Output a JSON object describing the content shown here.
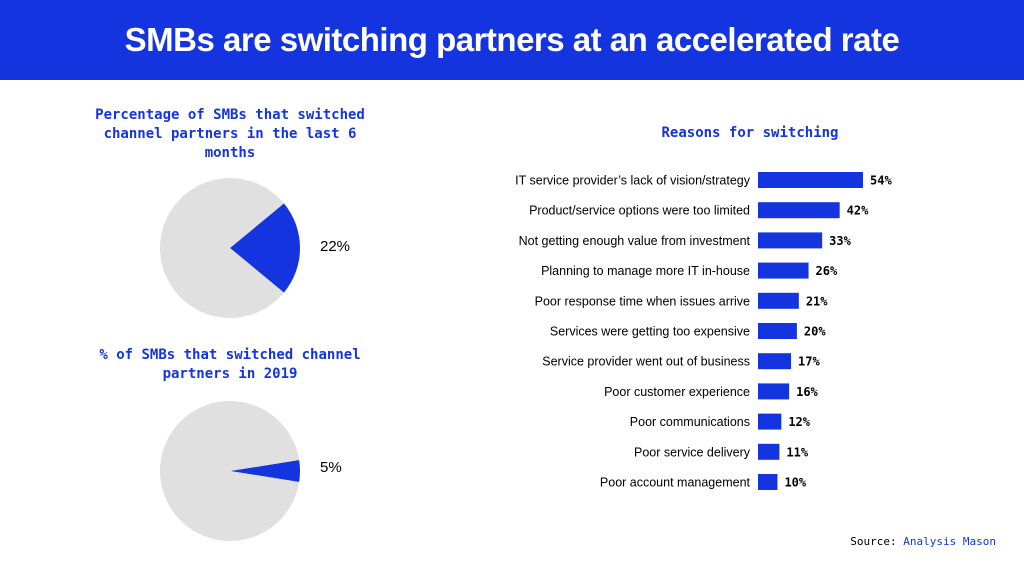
{
  "header": {
    "title": "SMBs are switching partners at an accelerated rate"
  },
  "colors": {
    "accent": "#1434e0",
    "pie_rest": "#e0e0e0",
    "text": "#000000",
    "background": "#ffffff"
  },
  "source": {
    "label": "Source:",
    "name": "Analysis Mason"
  },
  "chart_data": [
    {
      "type": "pie",
      "title": "Percentage of SMBs that switched channel partners in the last 6 months",
      "slices": [
        {
          "label": "22%",
          "value": 22
        },
        {
          "label": "",
          "value": 78
        }
      ]
    },
    {
      "type": "pie",
      "title": "% of SMBs that switched channel partners in 2019",
      "slices": [
        {
          "label": "5%",
          "value": 5
        },
        {
          "label": "",
          "value": 95
        }
      ]
    },
    {
      "type": "bar",
      "orientation": "horizontal",
      "title": "Reasons for switching",
      "categories": [
        "IT service provider’s lack of vision/strategy",
        "Product/service options were too limited",
        "Not getting enough value from investment",
        "Planning to manage more IT in-house",
        "Poor response time when issues arrive",
        "Services were getting too expensive",
        "Service provider went out of business",
        "Poor customer experience",
        "Poor communications",
        "Poor service delivery",
        "Poor account management"
      ],
      "values": [
        54,
        42,
        33,
        26,
        21,
        20,
        17,
        16,
        12,
        11,
        10
      ],
      "value_labels": [
        "54%",
        "42%",
        "33%",
        "26%",
        "21%",
        "20%",
        "17%",
        "16%",
        "12%",
        "11%",
        "10%"
      ],
      "unit": "%"
    }
  ]
}
